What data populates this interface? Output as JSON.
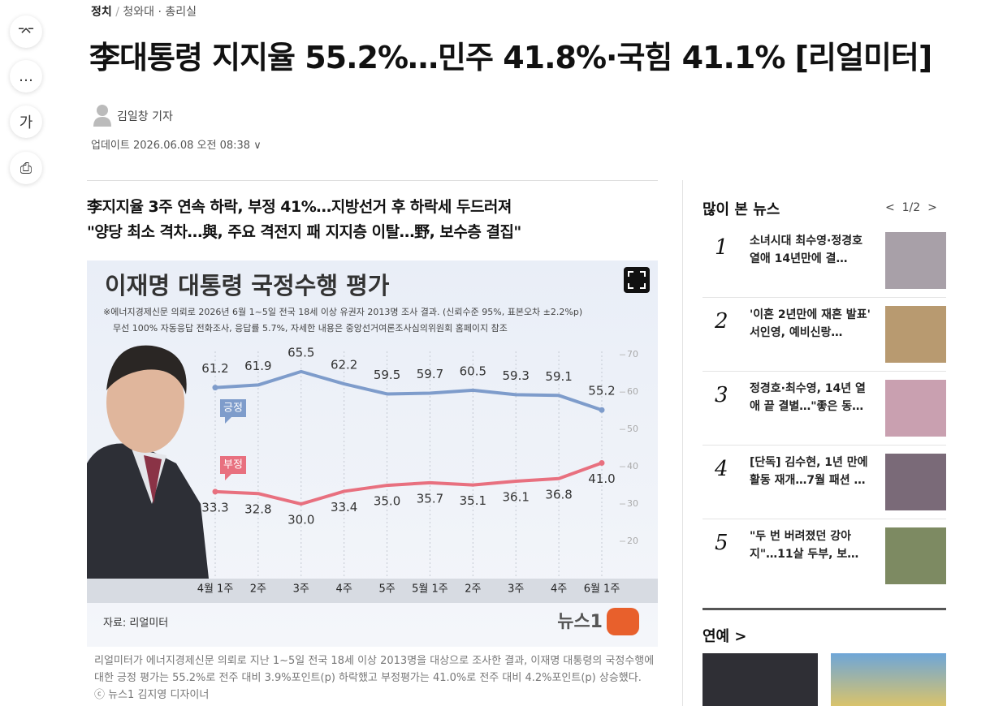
{
  "nav": {
    "section": "정치",
    "subsection": "청와대 · 총리실"
  },
  "article": {
    "title": "李대통령 지지율 55.2%…민주 41.8%·국힘 41.1% [리얼미터]",
    "author": "김일창 기자",
    "updated": "업데이트 2026.06.08 오전 08:38",
    "subheadings": [
      "李지지율 3주 연속 하락, 부정 41%…지방선거 후 하락세 두드러져",
      "\"양당 최소 격차…與, 주요 격전지 패 지지층 이탈…野, 보수층 결집\""
    ],
    "caption": "리얼미터가 에너지경제신문 의뢰로 지난 1~5일 전국 18세 이상 2013명을 대상으로 조사한 결과, 이재명 대통령의 국정수행에 대한 긍정 평가는 55.2%로 전주 대비 3.9%포인트(p) 하락했고 부정평가는 41.0%로 전주 대비 4.2%포인트(p) 상승했다. ⓒ 뉴스1 김지영 디자이너"
  },
  "chart": {
    "type": "line",
    "title": "이재명 대통령 국정수행 평가",
    "notes": [
      "※에너지경제신문 의뢰로 2026년 6월 1~5일 전국 18세 이상 유권자 2013명 조사 결과. (신뢰수준 95%, 표본오차 ±2.2%p)",
      "무선 100% 자동응답 전화조사, 응답률 5.7%, 자세한 내용은 중앙선거여론조사심의위원회 홈페이지 참조"
    ],
    "categories": [
      "4월 1주",
      "2주",
      "3주",
      "4주",
      "5주",
      "5월 1주",
      "2주",
      "3주",
      "4주",
      "6월 1주"
    ],
    "series": [
      {
        "name": "긍정",
        "color": "#7e9ccb",
        "values": [
          61.2,
          61.9,
          65.5,
          62.2,
          59.5,
          59.7,
          60.5,
          59.3,
          59.1,
          55.2
        ],
        "value_labels": [
          "61.2",
          "61.9",
          "65.5",
          "62.2",
          "59.5",
          "59.7",
          "60.5",
          "59.3",
          "59.1",
          "55.2"
        ]
      },
      {
        "name": "부정",
        "color": "#e8707f",
        "values": [
          33.3,
          32.8,
          30.0,
          33.4,
          35.0,
          35.7,
          35.1,
          36.1,
          36.8,
          41.0
        ],
        "value_labels": [
          "33.3",
          "32.8",
          "30.0",
          "33.4",
          "35.0",
          "35.7",
          "35.1",
          "36.1",
          "36.8",
          "41.0"
        ]
      }
    ],
    "ylim": [
      10,
      72
    ],
    "yticks": [
      20,
      30,
      40,
      50,
      60,
      70
    ],
    "source": "자료: 리얼미터",
    "logo": "뉴스1"
  },
  "sidebar": {
    "popular": {
      "title": "많이 본 뉴스",
      "page": "1/2",
      "items": [
        {
          "rank": 1,
          "title": "소녀시대 최수영·정경호 열애 14년만에 결…"
        },
        {
          "rank": 2,
          "title": "'이혼 2년만에 재혼 발표' 서인영, 예비신랑…"
        },
        {
          "rank": 3,
          "title": "정경호·최수영, 14년 열애 끝 결별…\"좋은 동…"
        },
        {
          "rank": 4,
          "title": "[단독] 김수현, 1년 만에 활동 재개…7월 패션 …"
        },
        {
          "rank": 5,
          "title": "\"두 번 버려졌던 강아지\"…11살 두부, 보…"
        }
      ]
    },
    "entertainment": "연예"
  }
}
